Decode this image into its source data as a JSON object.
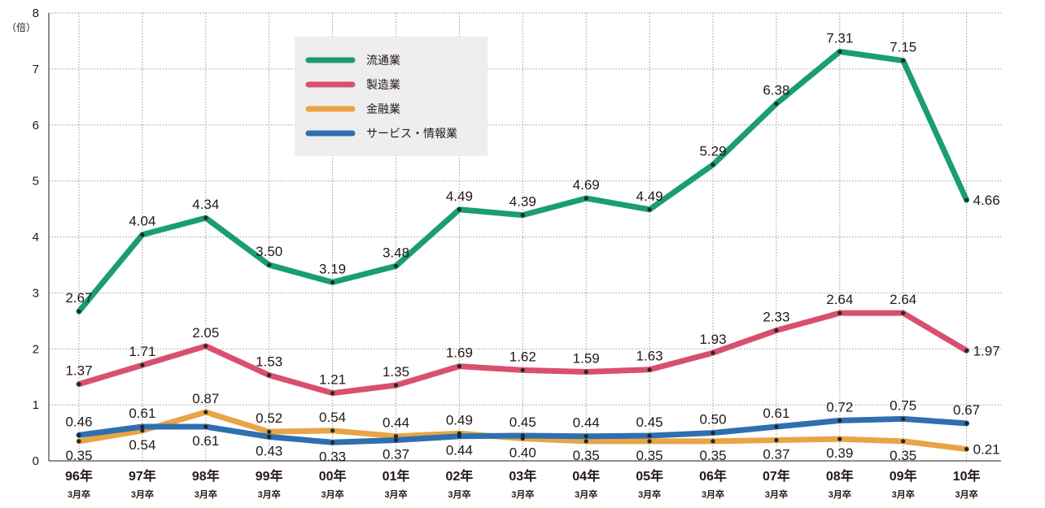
{
  "chart_data": {
    "type": "line",
    "unit_label": "（倍）",
    "ylim": [
      0,
      8
    ],
    "yticks": [
      0,
      1,
      2,
      3,
      4,
      5,
      6,
      7,
      8
    ],
    "grid": true,
    "legend_position": "top-center",
    "categories": [
      {
        "year": "96年",
        "sub": "3月卒"
      },
      {
        "year": "97年",
        "sub": "3月卒"
      },
      {
        "year": "98年",
        "sub": "3月卒"
      },
      {
        "year": "99年",
        "sub": "3月卒"
      },
      {
        "year": "00年",
        "sub": "3月卒"
      },
      {
        "year": "01年",
        "sub": "3月卒"
      },
      {
        "year": "02年",
        "sub": "3月卒"
      },
      {
        "year": "03年",
        "sub": "3月卒"
      },
      {
        "year": "04年",
        "sub": "3月卒"
      },
      {
        "year": "05年",
        "sub": "3月卒"
      },
      {
        "year": "06年",
        "sub": "3月卒"
      },
      {
        "year": "07年",
        "sub": "3月卒"
      },
      {
        "year": "08年",
        "sub": "3月卒"
      },
      {
        "year": "09年",
        "sub": "3月卒"
      },
      {
        "year": "10年",
        "sub": "3月卒"
      }
    ],
    "series": [
      {
        "key": "ryutsu",
        "name": "流通業",
        "color": "#1a9e6e",
        "values": [
          2.67,
          4.04,
          4.34,
          3.5,
          3.19,
          3.48,
          4.49,
          4.39,
          4.69,
          4.49,
          5.29,
          6.38,
          7.31,
          7.15,
          4.66
        ],
        "labels": [
          "2.67",
          "4.04",
          "4.34",
          "3.50",
          "3.19",
          "3.48",
          "4.49",
          "4.39",
          "4.69",
          "4.49",
          "5.29",
          "6.38",
          "7.31",
          "7.15",
          "4.66"
        ],
        "label_pos": [
          "above",
          "above",
          "above",
          "above",
          "above",
          "above",
          "above",
          "above",
          "above",
          "above",
          "above",
          "above",
          "above",
          "above",
          "right"
        ]
      },
      {
        "key": "seizo",
        "name": "製造業",
        "color": "#d9506f",
        "values": [
          1.37,
          1.71,
          2.05,
          1.53,
          1.21,
          1.35,
          1.69,
          1.62,
          1.59,
          1.63,
          1.93,
          2.33,
          2.64,
          2.64,
          1.97
        ],
        "labels": [
          "1.37",
          "1.71",
          "2.05",
          "1.53",
          "1.21",
          "1.35",
          "1.69",
          "1.62",
          "1.59",
          "1.63",
          "1.93",
          "2.33",
          "2.64",
          "2.64",
          "1.97"
        ],
        "label_pos": [
          "above",
          "above",
          "above",
          "above",
          "above",
          "above",
          "above",
          "above",
          "above",
          "above",
          "above",
          "above",
          "above",
          "above",
          "right"
        ]
      },
      {
        "key": "kinyu",
        "name": "金融業",
        "color": "#e8a447",
        "values": [
          0.35,
          0.54,
          0.87,
          0.52,
          0.54,
          0.44,
          0.49,
          0.4,
          0.35,
          0.35,
          0.35,
          0.37,
          0.39,
          0.35,
          0.21
        ],
        "labels": [
          "0.35",
          "0.54",
          "0.87",
          "0.52",
          "0.54",
          "0.44",
          "0.49",
          "0.40",
          "0.35",
          "0.35",
          "0.35",
          "0.37",
          "0.39",
          "0.35",
          "0.21"
        ],
        "label_pos": [
          "below",
          "below",
          "above",
          "above",
          "above",
          "above",
          "above",
          "below",
          "below",
          "below",
          "below",
          "below",
          "below",
          "below",
          "right"
        ]
      },
      {
        "key": "service",
        "name": "サービス・情報業",
        "color": "#2f6faf",
        "values": [
          0.46,
          0.61,
          0.61,
          0.43,
          0.33,
          0.37,
          0.44,
          0.45,
          0.44,
          0.45,
          0.5,
          0.61,
          0.72,
          0.75,
          0.67
        ],
        "labels": [
          "0.46",
          "0.61",
          "0.61",
          "0.43",
          "0.33",
          "0.37",
          "0.44",
          "0.45",
          "0.44",
          "0.45",
          "0.50",
          "0.61",
          "0.72",
          "0.75",
          "0.67"
        ],
        "label_pos": [
          "above",
          "above",
          "below",
          "below",
          "below",
          "below",
          "below",
          "above",
          "above",
          "above",
          "above",
          "above",
          "above",
          "above",
          "above"
        ]
      }
    ]
  }
}
